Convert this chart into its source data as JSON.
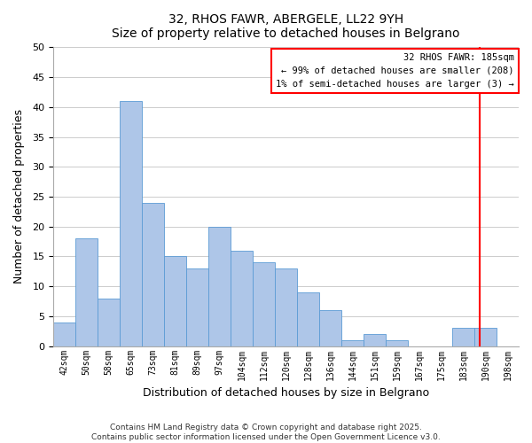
{
  "title": "32, RHOS FAWR, ABERGELE, LL22 9YH",
  "subtitle": "Size of property relative to detached houses in Belgrano",
  "xlabel": "Distribution of detached houses by size in Belgrano",
  "ylabel": "Number of detached properties",
  "footer_line1": "Contains HM Land Registry data © Crown copyright and database right 2025.",
  "footer_line2": "Contains public sector information licensed under the Open Government Licence v3.0.",
  "bin_labels": [
    "42sqm",
    "50sqm",
    "58sqm",
    "65sqm",
    "73sqm",
    "81sqm",
    "89sqm",
    "97sqm",
    "104sqm",
    "112sqm",
    "120sqm",
    "128sqm",
    "136sqm",
    "144sqm",
    "151sqm",
    "159sqm",
    "167sqm",
    "175sqm",
    "183sqm",
    "190sqm",
    "198sqm"
  ],
  "bar_heights": [
    4,
    18,
    8,
    41,
    24,
    15,
    13,
    20,
    16,
    14,
    13,
    9,
    6,
    1,
    2,
    1,
    0,
    0,
    3,
    3,
    0
  ],
  "bar_color": "#aec6e8",
  "bar_edgecolor": "#5b9bd5",
  "vline_x": 18.75,
  "vline_color": "red",
  "annotation_title": "32 RHOS FAWR: 185sqm",
  "annotation_line1": "← 99% of detached houses are smaller (208)",
  "annotation_line2": "1% of semi-detached houses are larger (3) →",
  "ylim": [
    0,
    50
  ],
  "yticks": [
    0,
    5,
    10,
    15,
    20,
    25,
    30,
    35,
    40,
    45,
    50
  ],
  "background_color": "#ffffff",
  "grid_color": "#cccccc"
}
